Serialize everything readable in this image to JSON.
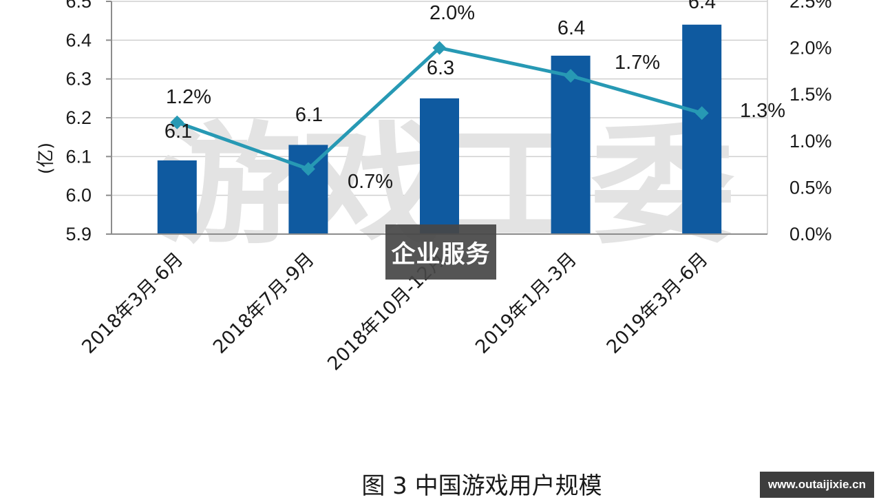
{
  "chart_data": {
    "type": "bar+line",
    "categories": [
      "2018年3月-6月",
      "2018年7月-9月",
      "2018年10月-12月",
      "2019年1月-3月",
      "2019年3月-6月"
    ],
    "series": [
      {
        "type": "bar",
        "axis": "left",
        "values": [
          6.09,
          6.13,
          6.25,
          6.36,
          6.44
        ],
        "labels": [
          "6.1",
          "6.1",
          "6.3",
          "6.4",
          "6.4"
        ],
        "color": "#0f5aa0"
      },
      {
        "type": "line",
        "axis": "right",
        "values": [
          1.2,
          0.7,
          2.0,
          1.7,
          1.3
        ],
        "labels": [
          "1.2%",
          "0.7%",
          "2.0%",
          "1.7%",
          "1.3%"
        ],
        "color": "#2799b4"
      }
    ],
    "ylabel": "(亿)",
    "ylim": [
      5.9,
      6.5
    ],
    "y_ticks": [
      "5.9",
      "6.0",
      "6.1",
      "6.2",
      "6.3",
      "6.4",
      "6.5"
    ],
    "y2lim": [
      0,
      2.5
    ],
    "y2_ticks": [
      "0.0%",
      "0.5%",
      "1.0%",
      "1.5%",
      "2.0%",
      "2.5%"
    ],
    "grid": true,
    "caption": "图 3  中国游戏用户规模"
  },
  "watermark": "游戏工委",
  "overlay_label": "企业服务",
  "site_label": "www.outaijixie.cn"
}
